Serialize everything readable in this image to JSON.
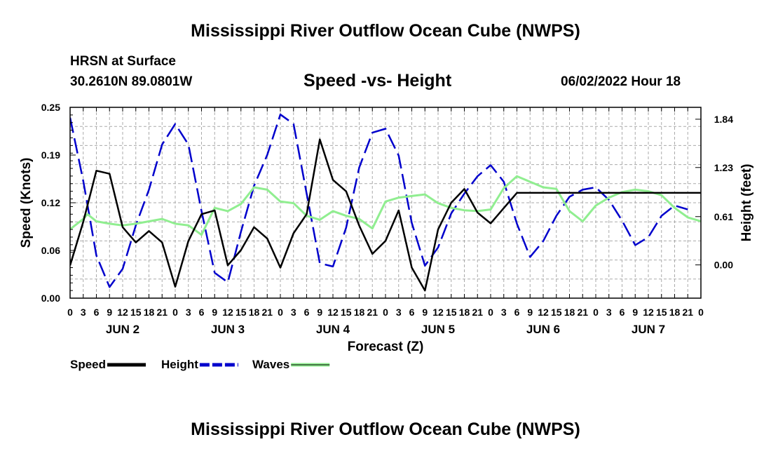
{
  "header": {
    "title": "Mississippi River Outflow Ocean Cube (NWPS)",
    "station": "HRSN at Surface",
    "coords": "30.2610N  89.0801W",
    "chart_title": "Speed -vs- Height",
    "datetime": "06/02/2022 Hour 18"
  },
  "footer": {
    "title": "Mississippi River Outflow Ocean Cube (NWPS)"
  },
  "chart_data": {
    "type": "line",
    "title": "Speed -vs- Height",
    "xlabel": "Forecast (Z)",
    "ylabel": "Speed (Knots)",
    "y2label": "Height (feet)",
    "x_hours_range": [
      0,
      144
    ],
    "x_tick_labels": [
      "0",
      "3",
      "6",
      "9",
      "12",
      "15",
      "18",
      "21",
      "0",
      "3",
      "6",
      "9",
      "12",
      "15",
      "18",
      "21",
      "0",
      "3",
      "6",
      "9",
      "12",
      "15",
      "18",
      "21",
      "0",
      "3",
      "6",
      "9",
      "12",
      "15",
      "18",
      "21",
      "0",
      "3",
      "6",
      "9",
      "12",
      "15",
      "18",
      "21",
      "0",
      "3",
      "6",
      "9",
      "12",
      "15",
      "18",
      "21",
      "0"
    ],
    "day_labels": [
      "JUN 2",
      "JUN 3",
      "JUN 4",
      "JUN 5",
      "JUN 6",
      "JUN 7"
    ],
    "y_left_range": [
      0,
      0.25
    ],
    "y_left_ticks": [
      "0.00",
      "0.06",
      "0.12",
      "0.19",
      "0.25"
    ],
    "y_right_range": [
      -0.42,
      1.99
    ],
    "y_right_ticks": [
      {
        "value": 0.0,
        "label": "0.00"
      },
      {
        "value": 0.61,
        "label": "0.61"
      },
      {
        "value": 1.23,
        "label": "1.23"
      },
      {
        "value": 1.84,
        "label": "1.84"
      }
    ],
    "grid": true,
    "colors": {
      "speed": "#000000",
      "height": "#0000cc",
      "waves": "#90ee90"
    },
    "series": [
      {
        "name": "Speed",
        "axis": "left",
        "points": [
          [
            0,
            0.043
          ],
          [
            3,
            0.1
          ],
          [
            6,
            0.167
          ],
          [
            9,
            0.163
          ],
          [
            12,
            0.093
          ],
          [
            15,
            0.073
          ],
          [
            18,
            0.088
          ],
          [
            21,
            0.073
          ],
          [
            24,
            0.015
          ],
          [
            27,
            0.075
          ],
          [
            30,
            0.11
          ],
          [
            33,
            0.115
          ],
          [
            36,
            0.043
          ],
          [
            39,
            0.063
          ],
          [
            42,
            0.093
          ],
          [
            45,
            0.078
          ],
          [
            48,
            0.04
          ],
          [
            51,
            0.085
          ],
          [
            54,
            0.11
          ],
          [
            57,
            0.208
          ],
          [
            60,
            0.155
          ],
          [
            63,
            0.14
          ],
          [
            66,
            0.095
          ],
          [
            69,
            0.058
          ],
          [
            72,
            0.075
          ],
          [
            75,
            0.115
          ],
          [
            78,
            0.04
          ],
          [
            81,
            0.01
          ],
          [
            84,
            0.09
          ],
          [
            87,
            0.125
          ],
          [
            90,
            0.143
          ],
          [
            93,
            0.112
          ],
          [
            96,
            0.098
          ],
          [
            99,
            0.118
          ],
          [
            102,
            0.138
          ],
          [
            144,
            0.138
          ]
        ]
      },
      {
        "name": "Height",
        "axis": "right",
        "points": [
          [
            0,
            1.86
          ],
          [
            3,
            1.06
          ],
          [
            6,
            0.12
          ],
          [
            9,
            -0.28
          ],
          [
            12,
            -0.05
          ],
          [
            15,
            0.5
          ],
          [
            18,
            0.95
          ],
          [
            21,
            1.52
          ],
          [
            24,
            1.78
          ],
          [
            27,
            1.52
          ],
          [
            30,
            0.68
          ],
          [
            33,
            -0.1
          ],
          [
            36,
            -0.22
          ],
          [
            39,
            0.42
          ],
          [
            42,
            1.0
          ],
          [
            45,
            1.39
          ],
          [
            48,
            1.9
          ],
          [
            51,
            1.78
          ],
          [
            54,
            0.9
          ],
          [
            57,
            0.02
          ],
          [
            60,
            -0.02
          ],
          [
            63,
            0.47
          ],
          [
            66,
            1.23
          ],
          [
            69,
            1.67
          ],
          [
            72,
            1.72
          ],
          [
            75,
            1.38
          ],
          [
            78,
            0.53
          ],
          [
            81,
            -0.01
          ],
          [
            84,
            0.22
          ],
          [
            87,
            0.65
          ],
          [
            90,
            0.9
          ],
          [
            93,
            1.12
          ],
          [
            96,
            1.26
          ],
          [
            99,
            1.05
          ],
          [
            102,
            0.52
          ],
          [
            105,
            0.1
          ],
          [
            108,
            0.3
          ],
          [
            111,
            0.62
          ],
          [
            114,
            0.86
          ],
          [
            117,
            0.95
          ],
          [
            120,
            0.98
          ],
          [
            123,
            0.82
          ],
          [
            126,
            0.56
          ],
          [
            129,
            0.25
          ],
          [
            132,
            0.35
          ],
          [
            135,
            0.62
          ],
          [
            138,
            0.75
          ],
          [
            141,
            0.7
          ]
        ]
      },
      {
        "name": "Waves",
        "axis": "right",
        "points": [
          [
            0,
            0.45
          ],
          [
            3,
            0.58
          ],
          [
            4,
            0.64
          ],
          [
            6,
            0.55
          ],
          [
            9,
            0.52
          ],
          [
            12,
            0.5
          ],
          [
            15,
            0.52
          ],
          [
            18,
            0.55
          ],
          [
            21,
            0.58
          ],
          [
            24,
            0.52
          ],
          [
            27,
            0.5
          ],
          [
            30,
            0.38
          ],
          [
            33,
            0.72
          ],
          [
            36,
            0.68
          ],
          [
            39,
            0.77
          ],
          [
            42,
            0.98
          ],
          [
            45,
            0.95
          ],
          [
            48,
            0.8
          ],
          [
            51,
            0.78
          ],
          [
            54,
            0.62
          ],
          [
            57,
            0.57
          ],
          [
            60,
            0.68
          ],
          [
            63,
            0.62
          ],
          [
            66,
            0.58
          ],
          [
            69,
            0.46
          ],
          [
            72,
            0.8
          ],
          [
            75,
            0.85
          ],
          [
            78,
            0.87
          ],
          [
            81,
            0.89
          ],
          [
            84,
            0.78
          ],
          [
            87,
            0.72
          ],
          [
            90,
            0.69
          ],
          [
            93,
            0.68
          ],
          [
            96,
            0.7
          ],
          [
            99,
            0.97
          ],
          [
            102,
            1.12
          ],
          [
            105,
            1.05
          ],
          [
            108,
            0.98
          ],
          [
            111,
            0.96
          ],
          [
            114,
            0.68
          ],
          [
            117,
            0.55
          ],
          [
            120,
            0.75
          ],
          [
            123,
            0.85
          ],
          [
            126,
            0.92
          ],
          [
            129,
            0.95
          ],
          [
            132,
            0.93
          ],
          [
            135,
            0.88
          ],
          [
            138,
            0.72
          ],
          [
            141,
            0.6
          ],
          [
            144,
            0.55
          ]
        ]
      }
    ],
    "legend": [
      "Speed",
      "Height",
      "Waves"
    ]
  }
}
